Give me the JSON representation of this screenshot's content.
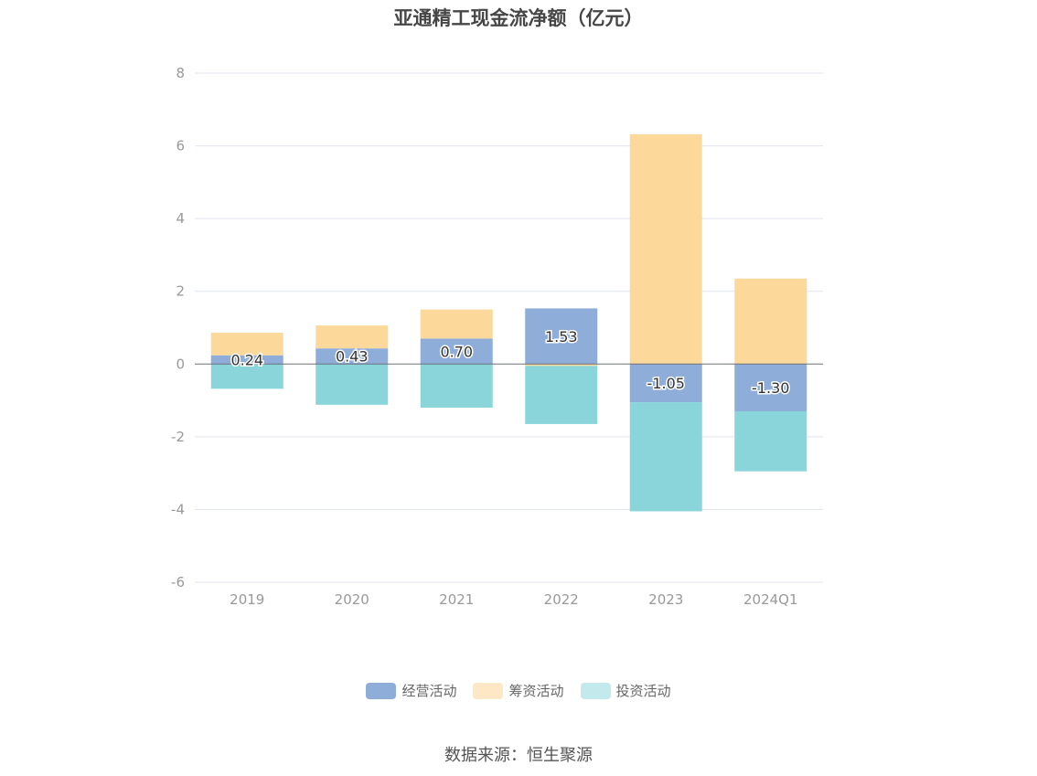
{
  "chart_data": {
    "type": "bar",
    "stacked": true,
    "title": "亚通精工现金流净额（亿元）",
    "categories": [
      "2019",
      "2020",
      "2021",
      "2022",
      "2023",
      "2024Q1"
    ],
    "ylim": [
      -6,
      8
    ],
    "yticks": [
      8,
      6,
      4,
      2,
      0,
      -2,
      -4,
      -6
    ],
    "grid": true,
    "legend_position": "bottom",
    "series": [
      {
        "name": "经营活动",
        "color": "#8eadd9",
        "values": [
          0.24,
          0.43,
          0.7,
          1.53,
          -1.05,
          -1.3
        ]
      },
      {
        "name": "筹资活动",
        "color": "#fdd89b",
        "values": [
          0.62,
          0.63,
          0.8,
          -0.05,
          6.32,
          2.35
        ]
      },
      {
        "name": "投资活动",
        "color": "#89d5da",
        "values": [
          -0.68,
          -1.12,
          -1.2,
          -1.6,
          -3.0,
          -1.65
        ]
      }
    ],
    "data_labels": [
      "0.24",
      "0.43",
      "0.70",
      "1.53",
      "-1.05",
      "-1.30"
    ]
  },
  "legend": {
    "items": [
      {
        "label": "经营活动",
        "color": "#8eadd9"
      },
      {
        "label": "筹资活动",
        "color": "#fde7c4"
      },
      {
        "label": "投资活动",
        "color": "#c3e9ec"
      }
    ]
  },
  "source": "数据来源：恒生聚源"
}
